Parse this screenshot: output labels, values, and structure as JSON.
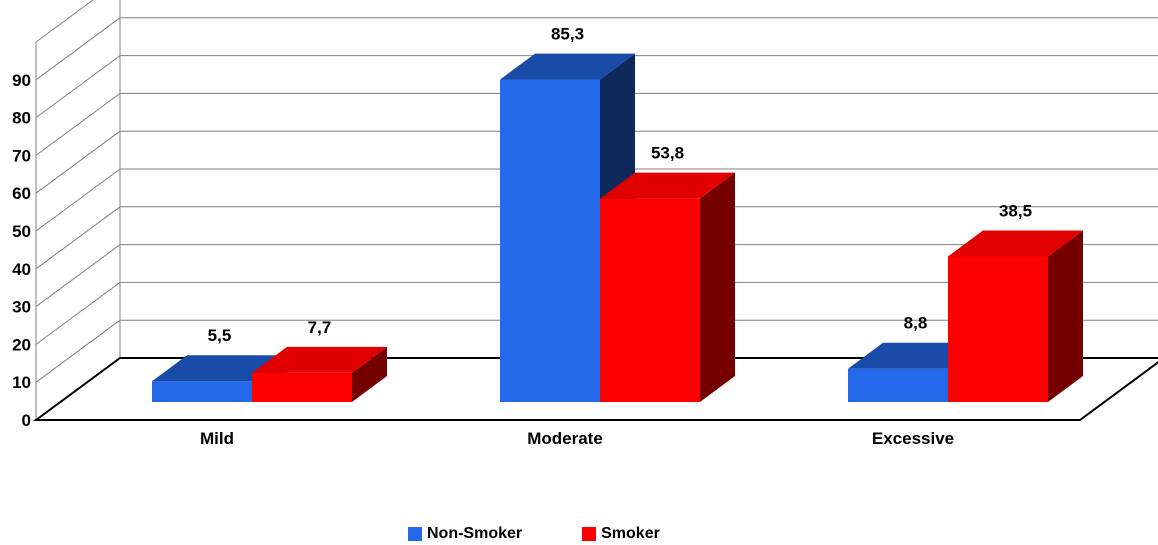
{
  "chart_data": {
    "type": "bar",
    "categories": [
      "Mild",
      "Moderate",
      "Excessive"
    ],
    "series": [
      {
        "name": "Non-Smoker",
        "values": [
          5.5,
          85.3,
          8.8
        ],
        "labels": [
          "5,5",
          "85,3",
          "8,8"
        ],
        "color": "#2369EA"
      },
      {
        "name": "Smoker",
        "values": [
          7.7,
          53.8,
          38.5
        ],
        "labels": [
          "7,7",
          "53,8",
          "38,5"
        ],
        "color": "#FF0000"
      }
    ],
    "yticks": [
      "0",
      "10",
      "20",
      "30",
      "40",
      "50",
      "60",
      "70",
      "80",
      "90"
    ],
    "ylim": [
      0,
      90
    ],
    "grid": true,
    "three_d": true,
    "legend_position": "bottom"
  }
}
